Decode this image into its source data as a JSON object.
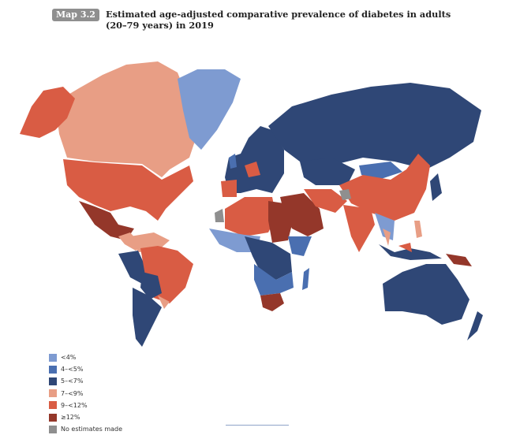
{
  "header": {
    "badge": "Map 3.2",
    "title": "Estimated age-adjusted comparative prevalence of diabetes in adults (20–79 years) in 2019"
  },
  "legend": {
    "items": [
      {
        "label": "<4%",
        "color": "#7e9bd1"
      },
      {
        "label": "4–<5%",
        "color": "#4a6fb0"
      },
      {
        "label": "5–<7%",
        "color": "#2f4776"
      },
      {
        "label": "7–<9%",
        "color": "#e89e85"
      },
      {
        "label": "9–<12%",
        "color": "#d95c44"
      },
      {
        "label": "≥12%",
        "color": "#94372a"
      },
      {
        "label": "No estimates made",
        "color": "#8f8f8f"
      }
    ]
  }
}
